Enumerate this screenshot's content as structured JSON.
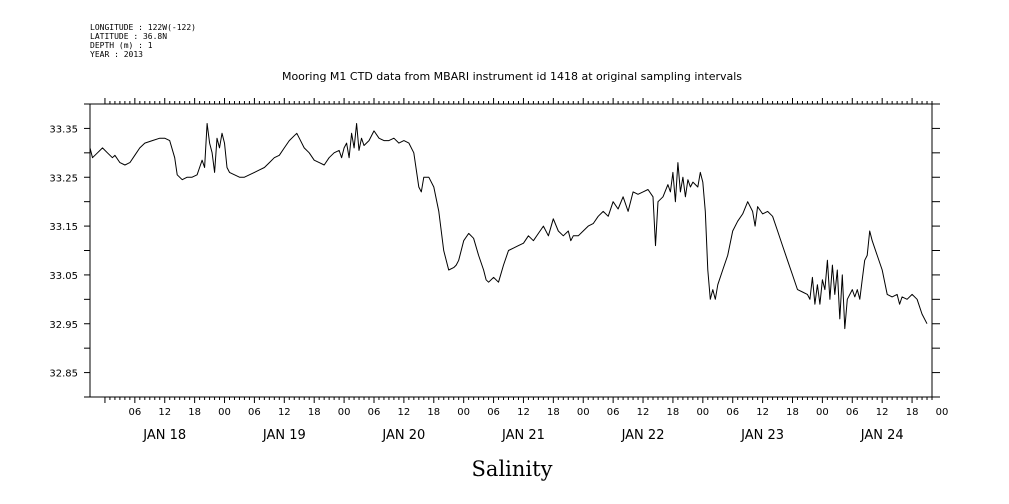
{
  "header": {
    "meta_lines": [
      "LONGITUDE : 122W(-122)",
      "LATITUDE : 36.8N",
      "DEPTH (m) : 1",
      "YEAR : 2013"
    ],
    "title": "Mooring M1 CTD data from MBARI instrument id 1418 at original sampling intervals"
  },
  "chart_data": {
    "type": "line",
    "title": "Mooring M1 CTD data from MBARI instrument id 1418 at original sampling intervals",
    "xlabel": "Salinity",
    "ylabel": "",
    "x_unit": "hours since JAN 18 00",
    "xlim": [
      -3,
      166
    ],
    "ylim": [
      32.8,
      33.4
    ],
    "y_ticks": [
      32.85,
      32.95,
      33.05,
      33.15,
      33.25,
      33.35
    ],
    "y_tick_labels": [
      "32.85",
      "32.95",
      "33.05",
      "33.15",
      "33.25",
      "33.35"
    ],
    "hour_labels": [
      "06",
      "12",
      "18",
      "00",
      "06",
      "12",
      "18",
      "00",
      "06",
      "12",
      "18",
      "00",
      "06",
      "12",
      "18",
      "00",
      "06",
      "12",
      "18",
      "00",
      "06",
      "12",
      "18",
      "00",
      "06",
      "12",
      "18",
      "00"
    ],
    "day_labels": [
      "JAN 18",
      "JAN 19",
      "JAN 20",
      "JAN 21",
      "JAN 22",
      "JAN 23",
      "JAN 24"
    ],
    "grid": false,
    "series": [
      {
        "color": "#000000",
        "points": [
          [
            -3,
            33.31
          ],
          [
            -2.5,
            33.29
          ],
          [
            -1.5,
            33.3
          ],
          [
            -0.5,
            33.31
          ],
          [
            0.5,
            33.3
          ],
          [
            1.5,
            33.29
          ],
          [
            2,
            33.295
          ],
          [
            3,
            33.28
          ],
          [
            4,
            33.275
          ],
          [
            5,
            33.28
          ],
          [
            6,
            33.295
          ],
          [
            7,
            33.31
          ],
          [
            8,
            33.32
          ],
          [
            9.5,
            33.325
          ],
          [
            11,
            33.33
          ],
          [
            12,
            33.33
          ],
          [
            13,
            33.325
          ],
          [
            14,
            33.29
          ],
          [
            14.5,
            33.255
          ],
          [
            15.5,
            33.245
          ],
          [
            16.5,
            33.25
          ],
          [
            17.5,
            33.25
          ],
          [
            18.5,
            33.255
          ],
          [
            19,
            33.27
          ],
          [
            19.5,
            33.285
          ],
          [
            20,
            33.27
          ],
          [
            20.5,
            33.36
          ],
          [
            21,
            33.32
          ],
          [
            21.5,
            33.3
          ],
          [
            22,
            33.26
          ],
          [
            22.5,
            33.33
          ],
          [
            23,
            33.31
          ],
          [
            23.5,
            33.34
          ],
          [
            24,
            33.32
          ],
          [
            24.5,
            33.27
          ],
          [
            25,
            33.26
          ],
          [
            26,
            33.255
          ],
          [
            27,
            33.25
          ],
          [
            28,
            33.25
          ],
          [
            29,
            33.255
          ],
          [
            30,
            33.26
          ],
          [
            31,
            33.265
          ],
          [
            32,
            33.27
          ],
          [
            33,
            33.28
          ],
          [
            34,
            33.29
          ],
          [
            35,
            33.295
          ],
          [
            36,
            33.31
          ],
          [
            37,
            33.325
          ],
          [
            38,
            33.335
          ],
          [
            38.5,
            33.34
          ],
          [
            39,
            33.33
          ],
          [
            40,
            33.31
          ],
          [
            41,
            33.3
          ],
          [
            42,
            33.285
          ],
          [
            43,
            33.28
          ],
          [
            44,
            33.275
          ],
          [
            45,
            33.29
          ],
          [
            46,
            33.3
          ],
          [
            47,
            33.305
          ],
          [
            47.5,
            33.29
          ],
          [
            48,
            33.31
          ],
          [
            48.5,
            33.32
          ],
          [
            49,
            33.29
          ],
          [
            49.5,
            33.34
          ],
          [
            50,
            33.31
          ],
          [
            50.5,
            33.36
          ],
          [
            51,
            33.305
          ],
          [
            51.5,
            33.33
          ],
          [
            52,
            33.315
          ],
          [
            53,
            33.325
          ],
          [
            54,
            33.345
          ],
          [
            55,
            33.33
          ],
          [
            56,
            33.325
          ],
          [
            57,
            33.325
          ],
          [
            58,
            33.33
          ],
          [
            59,
            33.32
          ],
          [
            60,
            33.325
          ],
          [
            61,
            33.32
          ],
          [
            62,
            33.3
          ],
          [
            63,
            33.23
          ],
          [
            63.5,
            33.22
          ],
          [
            64,
            33.25
          ],
          [
            65,
            33.25
          ],
          [
            66,
            33.23
          ],
          [
            67,
            33.18
          ],
          [
            68,
            33.1
          ],
          [
            69,
            33.06
          ],
          [
            70,
            33.065
          ],
          [
            70.5,
            33.07
          ],
          [
            71,
            33.08
          ],
          [
            72,
            33.12
          ],
          [
            73,
            33.135
          ],
          [
            74,
            33.125
          ],
          [
            75,
            33.09
          ],
          [
            76,
            33.06
          ],
          [
            76.5,
            33.04
          ],
          [
            77,
            33.035
          ],
          [
            78,
            33.045
          ],
          [
            79,
            33.035
          ],
          [
            80,
            33.07
          ],
          [
            81,
            33.1
          ],
          [
            82,
            33.105
          ],
          [
            83,
            33.11
          ],
          [
            84,
            33.115
          ],
          [
            85,
            33.13
          ],
          [
            86,
            33.12
          ],
          [
            87,
            33.135
          ],
          [
            88,
            33.15
          ],
          [
            89,
            33.13
          ],
          [
            90,
            33.165
          ],
          [
            91,
            33.14
          ],
          [
            92,
            33.13
          ],
          [
            93,
            33.14
          ],
          [
            93.5,
            33.12
          ],
          [
            94,
            33.13
          ],
          [
            95,
            33.13
          ],
          [
            96,
            33.14
          ],
          [
            97,
            33.15
          ],
          [
            98,
            33.155
          ],
          [
            99,
            33.17
          ],
          [
            100,
            33.18
          ],
          [
            101,
            33.17
          ],
          [
            102,
            33.2
          ],
          [
            103,
            33.185
          ],
          [
            104,
            33.21
          ],
          [
            105,
            33.18
          ],
          [
            106,
            33.22
          ],
          [
            107,
            33.215
          ],
          [
            108,
            33.22
          ],
          [
            109,
            33.225
          ],
          [
            110,
            33.21
          ],
          [
            110.5,
            33.11
          ],
          [
            111,
            33.2
          ],
          [
            112,
            33.21
          ],
          [
            113,
            33.235
          ],
          [
            113.5,
            33.22
          ],
          [
            114,
            33.26
          ],
          [
            114.5,
            33.2
          ],
          [
            115,
            33.28
          ],
          [
            115.5,
            33.22
          ],
          [
            116,
            33.25
          ],
          [
            116.5,
            33.21
          ],
          [
            117,
            33.245
          ],
          [
            117.5,
            33.23
          ],
          [
            118,
            33.24
          ],
          [
            119,
            33.23
          ],
          [
            119.5,
            33.26
          ],
          [
            120,
            33.24
          ],
          [
            120.5,
            33.18
          ],
          [
            121,
            33.06
          ],
          [
            121.5,
            33.0
          ],
          [
            122,
            33.02
          ],
          [
            122.5,
            33.0
          ],
          [
            123,
            33.03
          ],
          [
            124,
            33.06
          ],
          [
            125,
            33.09
          ],
          [
            126,
            33.14
          ],
          [
            127,
            33.16
          ],
          [
            128,
            33.175
          ],
          [
            129,
            33.2
          ],
          [
            130,
            33.18
          ],
          [
            130.5,
            33.15
          ],
          [
            131,
            33.19
          ],
          [
            132,
            33.175
          ],
          [
            133,
            33.18
          ],
          [
            134,
            33.17
          ],
          [
            135,
            33.14
          ],
          [
            136,
            33.11
          ],
          [
            137,
            33.08
          ],
          [
            138,
            33.05
          ],
          [
            139,
            33.02
          ],
          [
            140,
            33.015
          ],
          [
            141,
            33.01
          ],
          [
            141.5,
            33.0
          ],
          [
            142,
            33.045
          ],
          [
            142.5,
            32.99
          ],
          [
            143,
            33.03
          ],
          [
            143.5,
            32.99
          ],
          [
            144,
            33.04
          ],
          [
            144.5,
            33.02
          ],
          [
            145,
            33.08
          ],
          [
            145.5,
            33.0
          ],
          [
            146,
            33.07
          ],
          [
            146.5,
            33.01
          ],
          [
            147,
            33.06
          ],
          [
            147.5,
            32.96
          ],
          [
            148,
            33.05
          ],
          [
            148.5,
            32.94
          ],
          [
            149,
            33.0
          ],
          [
            150,
            33.02
          ],
          [
            150.5,
            33.005
          ],
          [
            151,
            33.02
          ],
          [
            151.5,
            33.0
          ],
          [
            152,
            33.04
          ],
          [
            152.5,
            33.08
          ],
          [
            153,
            33.09
          ],
          [
            153.5,
            33.14
          ],
          [
            154,
            33.12
          ],
          [
            155,
            33.09
          ],
          [
            156,
            33.06
          ],
          [
            157,
            33.01
          ],
          [
            158,
            33.005
          ],
          [
            159,
            33.01
          ],
          [
            159.5,
            32.99
          ],
          [
            160,
            33.005
          ],
          [
            161,
            33.0
          ],
          [
            162,
            33.01
          ],
          [
            163,
            33.0
          ],
          [
            164,
            32.97
          ],
          [
            165,
            32.95
          ]
        ]
      }
    ],
    "notes": "x is hours since JAN 18 00 (estimated from tick positions); plotting uses a piecewise mapping from the segments below"
  }
}
